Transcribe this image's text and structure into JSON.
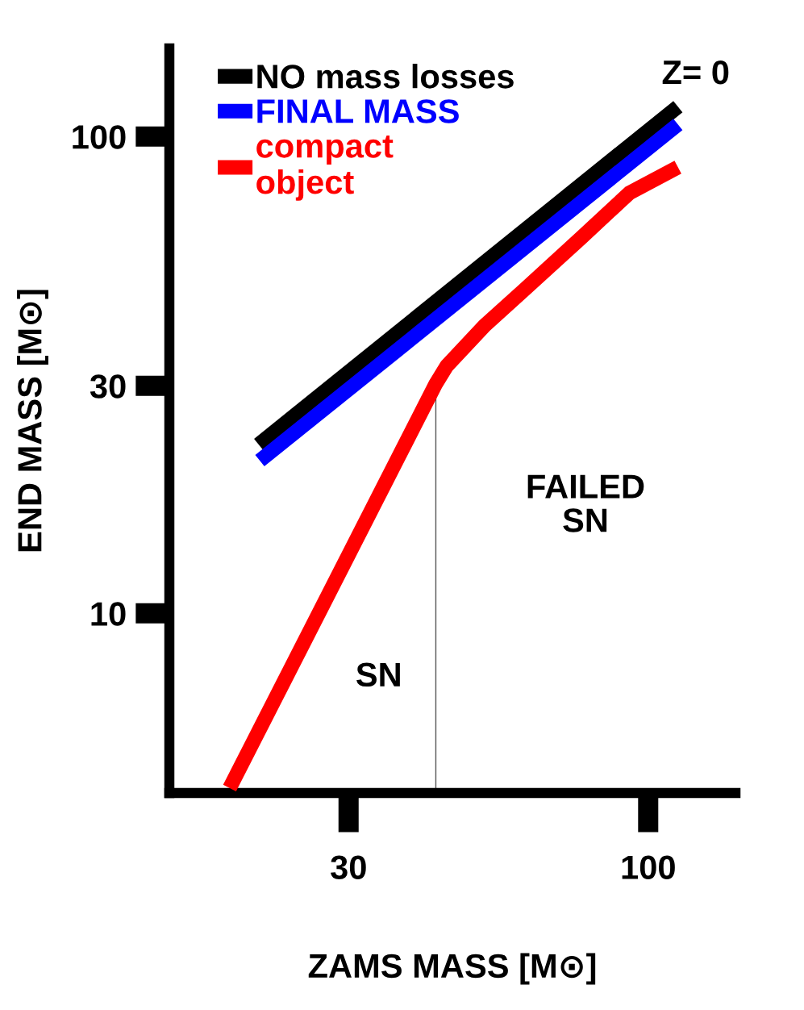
{
  "chart_data": {
    "type": "line",
    "xlabel": "ZAMS MASS [M⊙]",
    "ylabel": "END MASS [M⊙]",
    "log": "xy",
    "xlim": [
      14.6,
      142
    ],
    "ylim": [
      4.2,
      153
    ],
    "xticks": [
      30,
      100
    ],
    "yticks": [
      10,
      30,
      100
    ],
    "grid": false,
    "legend": "top left",
    "marker": "none",
    "line_style": "solid",
    "series": [
      {
        "name": "NO mass losses",
        "color": "#000000",
        "x": [
          20.9,
          112.7
        ],
        "values": [
          22.6,
          115.5
        ]
      },
      {
        "name": "FINAL MASS",
        "color": "#0000ff",
        "x": [
          21,
          112.7
        ],
        "values": [
          20.9,
          106
        ]
      },
      {
        "name": "compact\nobject",
        "color": "#ff0000",
        "x": [
          18.6,
          42.6,
          44.5,
          51.8,
          60.9,
          76.6,
          92.7,
          112.7
        ],
        "values": [
          4.3,
          30.3,
          33,
          40.1,
          47.8,
          61.5,
          76.1,
          86.2
        ]
      }
    ],
    "ref_lines": [
      {
        "axis": "x",
        "value": 42.6,
        "color": "#555555"
      }
    ],
    "annotations": [
      "Z= 0",
      "SN",
      "FAILED\nSN"
    ]
  }
}
